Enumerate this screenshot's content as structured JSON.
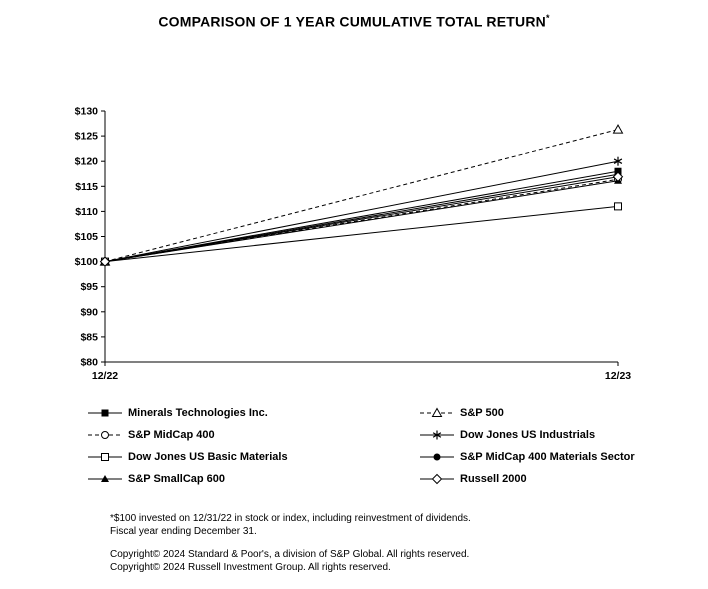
{
  "title": "COMPARISON OF 1 YEAR CUMULATIVE TOTAL RETURN",
  "title_superscript": "*",
  "chart_data": {
    "type": "line",
    "x": [
      "12/22",
      "12/23"
    ],
    "ylim": [
      80,
      130
    ],
    "y_ticks": [
      80,
      85,
      90,
      95,
      100,
      105,
      110,
      115,
      120,
      125,
      130
    ],
    "y_tick_labels": [
      "$80",
      "$85",
      "$90",
      "$95",
      "$100",
      "$105",
      "$110",
      "$115",
      "$120",
      "$125",
      "$130"
    ],
    "grid": false,
    "legend_position": "bottom-two-columns",
    "line_color": "#000000",
    "series": [
      {
        "name": "Minerals Technologies Inc.",
        "values": [
          100,
          118.0
        ],
        "marker": "square-filled",
        "line": "solid"
      },
      {
        "name": "S&P 500",
        "values": [
          100,
          126.3
        ],
        "marker": "triangle-open",
        "line": "dashed"
      },
      {
        "name": "S&P MidCap 400",
        "values": [
          100,
          116.4
        ],
        "marker": "circle-open",
        "line": "dashed"
      },
      {
        "name": "Dow Jones US Industrials",
        "values": [
          100,
          120.0
        ],
        "marker": "asterisk",
        "line": "solid"
      },
      {
        "name": "Dow Jones US Basic Materials",
        "values": [
          100,
          111.0
        ],
        "marker": "square-open",
        "line": "solid"
      },
      {
        "name": "S&P MidCap 400 Materials Sector",
        "values": [
          100,
          117.4
        ],
        "marker": "circle-filled",
        "line": "solid"
      },
      {
        "name": "S&P SmallCap 600",
        "values": [
          100,
          116.1
        ],
        "marker": "triangle-filled",
        "line": "solid"
      },
      {
        "name": "Russell 2000",
        "values": [
          100,
          116.9
        ],
        "marker": "diamond-open",
        "line": "solid"
      }
    ]
  },
  "footnotes": {
    "line1": "*$100 invested on 12/31/22 in stock or index, including reinvestment of dividends.",
    "line2": "Fiscal year ending December 31.",
    "copyright1": "Copyright© 2024 Standard & Poor's, a division of S&P Global. All rights reserved.",
    "copyright2": "Copyright© 2024 Russell Investment Group. All rights reserved."
  },
  "colors": {
    "background": "#ffffff",
    "line": "#000000",
    "text": "#000000"
  }
}
